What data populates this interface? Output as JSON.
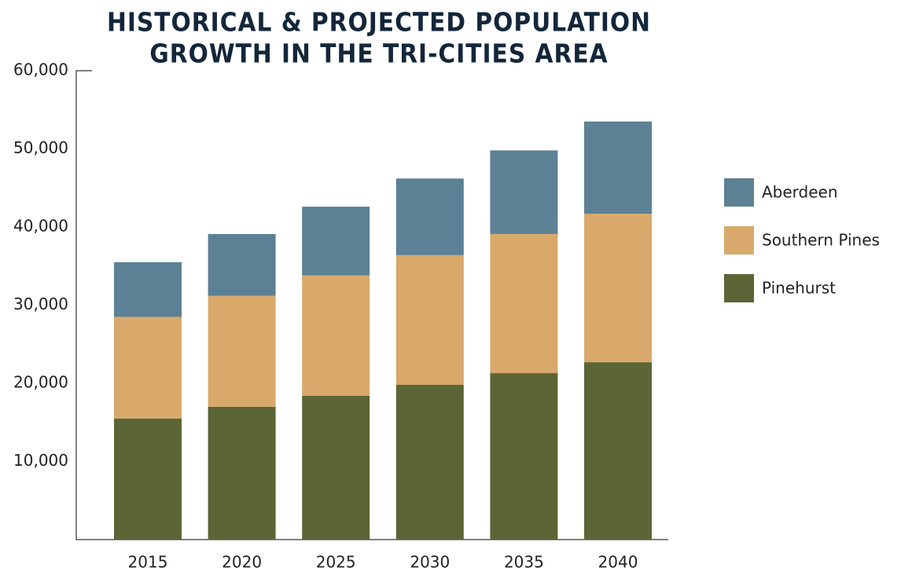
{
  "chart_data": {
    "type": "stacked_bar",
    "title": [
      "HISTORICAL & PROJECTED POPULATION",
      "GROWTH IN THE TRI-CITIES AREA"
    ],
    "categories": [
      "2015",
      "2020",
      "2025",
      "2030",
      "2035",
      "2040"
    ],
    "series": [
      {
        "name": "Pinehurst",
        "color": "#5c6535",
        "values": [
          15500,
          17000,
          18400,
          19800,
          21300,
          22700
        ]
      },
      {
        "name": "Southern Pines",
        "color": "#d8a96b",
        "values": [
          13000,
          14200,
          15400,
          16600,
          17800,
          19000
        ]
      },
      {
        "name": "Aberdeen",
        "color": "#5c8094",
        "values": [
          7000,
          7900,
          8800,
          9800,
          10700,
          11800
        ]
      }
    ],
    "ylim": [
      0,
      60000
    ],
    "yticks": [
      {
        "value": 10000,
        "label": "10,000"
      },
      {
        "value": 20000,
        "label": "20,000"
      },
      {
        "value": 30000,
        "label": "30,000"
      },
      {
        "value": 40000,
        "label": "40,000"
      },
      {
        "value": 50000,
        "label": "50,000"
      },
      {
        "value": 60000,
        "label": "60,000"
      }
    ],
    "legend": "right"
  }
}
